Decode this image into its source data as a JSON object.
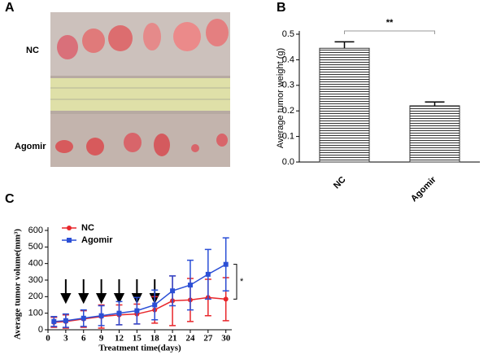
{
  "panel_a": {
    "label": "A",
    "rows": [
      "NC",
      "Agomir"
    ]
  },
  "chart_data": [
    {
      "type": "bar",
      "panel_label": "B",
      "y_label": "Average tumor weight (g)",
      "categories": [
        "NC",
        "Agomir"
      ],
      "values": [
        0.445,
        0.22
      ],
      "errors": [
        0.025,
        0.015
      ],
      "color": "#333333",
      "significance": "**",
      "ylim": [
        0,
        0.5
      ],
      "yticks": [
        {
          "value": 0,
          "label": "0.0"
        },
        0.1,
        0.2,
        0.3,
        0.4,
        0.5
      ]
    },
    {
      "type": "line",
      "panel_label": "C",
      "y_label": "Average tumor volume(mm³)",
      "x_label": "Treatment time(days)",
      "x": [
        1,
        3,
        6,
        9,
        12,
        15,
        18,
        21,
        24,
        27,
        30
      ],
      "series": [
        {
          "name": "NC",
          "color": "#e8262b",
          "marker": "circle",
          "values": [
            45,
            50,
            65,
            80,
            90,
            95,
            120,
            175,
            180,
            195,
            185
          ],
          "errors": [
            30,
            40,
            50,
            70,
            60,
            60,
            80,
            150,
            130,
            110,
            130
          ]
        },
        {
          "name": "Agomir",
          "color": "#2b4fd6",
          "marker": "square",
          "values": [
            50,
            55,
            70,
            85,
            100,
            115,
            150,
            235,
            270,
            335,
            395
          ],
          "errors": [
            30,
            40,
            50,
            60,
            70,
            80,
            90,
            90,
            150,
            150,
            160
          ]
        }
      ],
      "arrows_x": [
        3,
        6,
        9,
        12,
        15,
        18
      ],
      "significance": "*",
      "xlim": [
        0,
        31
      ],
      "xticks": [
        0,
        3,
        6,
        9,
        12,
        15,
        18,
        21,
        24,
        27,
        30
      ],
      "ylim": [
        0,
        600
      ],
      "yticks": [
        0,
        100,
        200,
        300,
        400,
        500,
        600
      ]
    }
  ]
}
